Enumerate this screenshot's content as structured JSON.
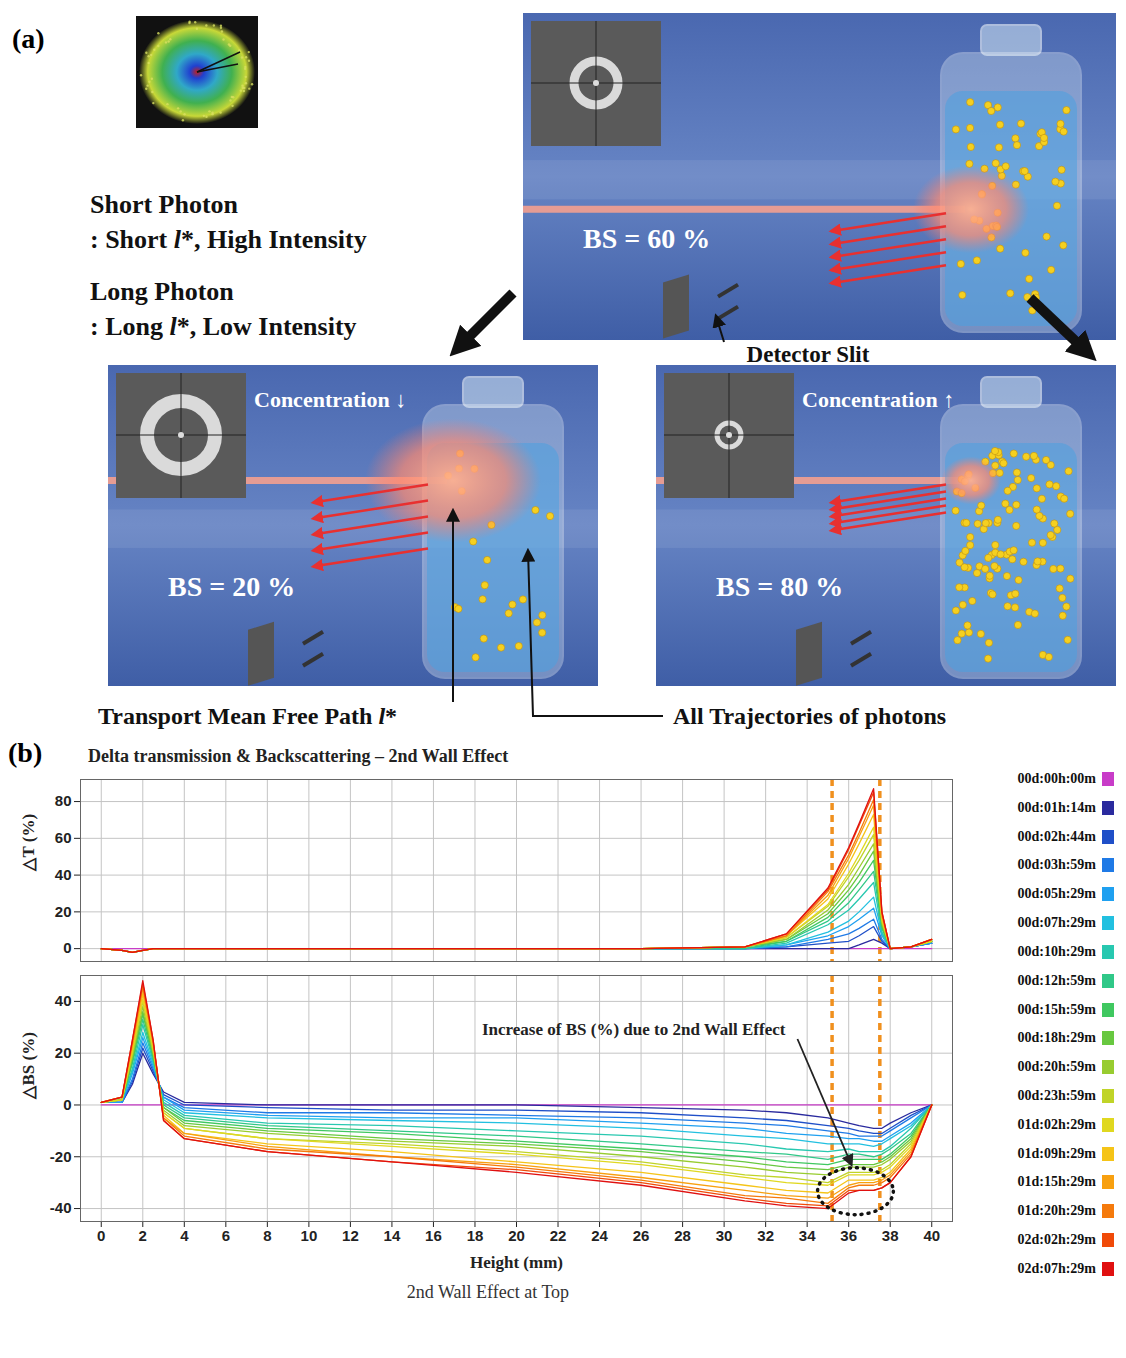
{
  "diagram": {
    "letter": "(a)",
    "photon_legend": [
      {
        "name": "Short Photon",
        "desc": ": Short l*, High Intensity"
      },
      {
        "name": "Long Photon",
        "desc": ": Long l*, Low Intensity"
      }
    ],
    "scenes": [
      {
        "label": "BS = 60 %"
      },
      {
        "label": "BS = 20 %",
        "concentration": "Concentration ↓"
      },
      {
        "label": "BS = 80 %",
        "concentration": "Concentration ↑"
      }
    ],
    "detector_label": "Detector Slit",
    "path_label": "Transport Mean Free Path l*",
    "trajectory_label": "All Trajectories of photons"
  },
  "chart_letter": "(b)",
  "caption": "2nd Wall Effect at Top",
  "chart_data": [
    {
      "type": "line",
      "title": "Delta transmission & Backscattering – 2nd Wall Effect",
      "x": [
        0,
        1,
        1.5,
        2,
        2.5,
        3,
        4,
        8,
        14,
        20,
        26,
        31,
        33,
        35,
        36,
        36.5,
        37.2,
        37.6,
        38,
        39,
        40
      ],
      "xlim": [
        -1,
        41
      ],
      "xticks": [
        0,
        2,
        4,
        6,
        8,
        10,
        12,
        14,
        16,
        18,
        20,
        22,
        24,
        26,
        28,
        30,
        32,
        34,
        36,
        38,
        40
      ],
      "ylabel": "△T (%)",
      "ylim": [
        -7,
        92
      ],
      "yticks": [
        0,
        20,
        40,
        60,
        80
      ],
      "grid": true,
      "legend": "right",
      "tick_labels": "y",
      "series": [
        {
          "name": "00d:00h:00m",
          "color": "#c83cc8",
          "values": [
            0,
            0,
            0,
            0,
            0,
            0,
            0,
            0,
            0,
            0,
            0,
            0,
            0,
            0,
            0,
            0,
            0,
            0,
            0,
            0,
            0
          ]
        },
        {
          "name": "00d:01h:14m",
          "color": "#2a2a9e",
          "values": [
            0,
            -1,
            -2,
            -1,
            0,
            0,
            0,
            0,
            0,
            0,
            0,
            0,
            0,
            0,
            0,
            2,
            5,
            3,
            0,
            1,
            3
          ]
        },
        {
          "name": "00d:02h:44m",
          "color": "#1f4fc8",
          "values": [
            0,
            -1,
            -2,
            -1,
            0,
            0,
            0,
            0,
            0,
            0,
            0,
            0,
            1,
            3,
            4,
            7,
            12,
            4,
            0,
            1,
            3
          ]
        },
        {
          "name": "00d:03h:59m",
          "color": "#1f7ae6",
          "values": [
            0,
            -1,
            -2,
            -1,
            0,
            0,
            0,
            0,
            0,
            0,
            0,
            0,
            1,
            5,
            8,
            11,
            16,
            5,
            0,
            1,
            3
          ]
        },
        {
          "name": "00d:05h:29m",
          "color": "#1fa0f0",
          "values": [
            0,
            -1,
            -2,
            -1,
            0,
            0,
            0,
            0,
            0,
            0,
            0,
            0,
            2,
            7,
            12,
            16,
            22,
            7,
            0,
            1,
            3
          ]
        },
        {
          "name": "00d:07h:29m",
          "color": "#22c0e0",
          "values": [
            0,
            -1,
            -2,
            -1,
            0,
            0,
            0,
            0,
            0,
            0,
            0,
            0,
            2,
            9,
            15,
            20,
            28,
            8,
            0,
            1,
            4
          ]
        },
        {
          "name": "00d:10h:29m",
          "color": "#28c8b0",
          "values": [
            0,
            -1,
            -2,
            -1,
            0,
            0,
            0,
            0,
            0,
            0,
            0,
            0,
            3,
            13,
            21,
            27,
            36,
            9,
            0,
            1,
            4
          ]
        },
        {
          "name": "00d:12h:59m",
          "color": "#30c888",
          "values": [
            0,
            -1,
            -2,
            -1,
            0,
            0,
            0,
            0,
            0,
            0,
            0,
            0,
            4,
            15,
            25,
            32,
            42,
            11,
            0,
            1,
            4
          ]
        },
        {
          "name": "00d:15h:59m",
          "color": "#40c860",
          "values": [
            0,
            -1,
            -2,
            -1,
            0,
            0,
            0,
            0,
            0,
            0,
            0,
            1,
            4,
            17,
            29,
            36,
            48,
            12,
            0,
            1,
            4
          ]
        },
        {
          "name": "00d:18h:29m",
          "color": "#68c840",
          "values": [
            0,
            -1,
            -2,
            -1,
            0,
            0,
            0,
            0,
            0,
            0,
            0,
            1,
            5,
            19,
            32,
            40,
            53,
            13,
            0,
            1,
            4
          ]
        },
        {
          "name": "00d:20h:59m",
          "color": "#98cc30",
          "values": [
            0,
            -1,
            -2,
            -1,
            0,
            0,
            0,
            0,
            0,
            0,
            0,
            1,
            5,
            21,
            35,
            44,
            57,
            14,
            0,
            1,
            4
          ]
        },
        {
          "name": "00d:23h:59m",
          "color": "#c0d428",
          "values": [
            0,
            -1,
            -2,
            -1,
            0,
            0,
            0,
            0,
            0,
            0,
            0,
            1,
            6,
            23,
            39,
            48,
            62,
            15,
            0,
            1,
            4
          ]
        },
        {
          "name": "01d:02h:29m",
          "color": "#e0d820",
          "values": [
            0,
            -1,
            -2,
            -1,
            0,
            0,
            0,
            0,
            0,
            0,
            0,
            1,
            6,
            24,
            41,
            51,
            66,
            16,
            0,
            1,
            4
          ]
        },
        {
          "name": "01d:09h:29m",
          "color": "#f5c418",
          "values": [
            0,
            -1,
            -2,
            -1,
            0,
            0,
            0,
            0,
            0,
            0,
            0,
            1,
            7,
            27,
            46,
            57,
            73,
            17,
            0,
            1,
            5
          ]
        },
        {
          "name": "01d:15h:29m",
          "color": "#f8a010",
          "values": [
            0,
            -1,
            -2,
            -1,
            0,
            0,
            0,
            0,
            0,
            0,
            0,
            1,
            7,
            29,
            49,
            61,
            78,
            18,
            0,
            1,
            5
          ]
        },
        {
          "name": "01d:20h:29m",
          "color": "#f57a0c",
          "values": [
            0,
            -1,
            -2,
            -1,
            0,
            0,
            0,
            0,
            0,
            0,
            0,
            1,
            7,
            31,
            51,
            63,
            81,
            19,
            0,
            1,
            5
          ]
        },
        {
          "name": "02d:02h:29m",
          "color": "#f04a08",
          "values": [
            0,
            -1,
            -2,
            -1,
            0,
            0,
            0,
            0,
            0,
            0,
            0,
            1,
            8,
            32,
            54,
            67,
            85,
            20,
            0,
            1,
            5
          ]
        },
        {
          "name": "02d:07h:29m",
          "color": "#e01010",
          "values": [
            0,
            -1,
            -2,
            -1,
            0,
            0,
            0,
            0,
            0,
            0,
            0,
            1,
            8,
            33,
            55,
            68,
            87,
            20,
            0,
            1,
            5
          ]
        }
      ]
    },
    {
      "type": "line",
      "x": [
        0,
        1,
        1.5,
        2,
        2.5,
        3,
        4,
        8,
        14,
        20,
        26,
        31,
        33,
        35,
        36,
        36.5,
        37.2,
        37.6,
        38,
        39,
        40
      ],
      "xlabel": "Height (mm)",
      "xlim": [
        -1,
        41
      ],
      "xticks": [
        0,
        2,
        4,
        6,
        8,
        10,
        12,
        14,
        16,
        18,
        20,
        22,
        24,
        26,
        28,
        30,
        32,
        34,
        36,
        38,
        40
      ],
      "ylabel": "△BS (%)",
      "ylim": [
        -45,
        50
      ],
      "yticks": [
        -40,
        -20,
        0,
        20,
        40
      ],
      "grid": true,
      "annotation": {
        "text": "Increase of BS (%) due to 2nd Wall Effect",
        "x_range": [
          35.2,
          37.5
        ],
        "y_range": [
          -41,
          -26
        ]
      },
      "series": [
        {
          "name": "00d:00h:00m",
          "color": "#c83cc8",
          "values": [
            0,
            0,
            0,
            0,
            0,
            0,
            0,
            0,
            0,
            0,
            0,
            0,
            0,
            0,
            0,
            0,
            0,
            0,
            0,
            0,
            0
          ]
        },
        {
          "name": "00d:01h:14m",
          "color": "#2a2a9e",
          "values": [
            1,
            1,
            8,
            20,
            12,
            5,
            1,
            0,
            0,
            0,
            -1,
            -2,
            -3,
            -5,
            -7,
            -8,
            -9,
            -9,
            -7,
            -3,
            0
          ]
        },
        {
          "name": "00d:02h:44m",
          "color": "#1f4fc8",
          "values": [
            1,
            1,
            9,
            22,
            13,
            4,
            0,
            -1,
            -2,
            -2,
            -3,
            -5,
            -6,
            -8,
            -9,
            -10,
            -11,
            -11,
            -9,
            -4,
            0
          ]
        },
        {
          "name": "00d:03h:59m",
          "color": "#1f7ae6",
          "values": [
            1,
            1,
            10,
            24,
            14,
            3,
            -1,
            -3,
            -3,
            -4,
            -5,
            -7,
            -8,
            -10,
            -11,
            -12,
            -12,
            -12,
            -10,
            -5,
            0
          ]
        },
        {
          "name": "00d:05h:29m",
          "color": "#1fa0f0",
          "values": [
            1,
            1,
            12,
            26,
            15,
            3,
            -2,
            -4,
            -5,
            -5,
            -7,
            -9,
            -11,
            -12,
            -13,
            -13,
            -14,
            -14,
            -12,
            -7,
            0
          ]
        },
        {
          "name": "00d:07h:29m",
          "color": "#22c0e0",
          "values": [
            1,
            2,
            13,
            28,
            16,
            2,
            -3,
            -5,
            -6,
            -7,
            -9,
            -12,
            -13,
            -15,
            -15,
            -15,
            -16,
            -15,
            -13,
            -8,
            0
          ]
        },
        {
          "name": "00d:10h:29m",
          "color": "#28c8b0",
          "values": [
            1,
            2,
            14,
            31,
            17,
            1,
            -4,
            -7,
            -8,
            -10,
            -12,
            -15,
            -17,
            -18,
            -17,
            -18,
            -18,
            -18,
            -16,
            -9,
            0
          ]
        },
        {
          "name": "00d:12h:59m",
          "color": "#30c888",
          "values": [
            1,
            2,
            16,
            33,
            18,
            0,
            -5,
            -8,
            -10,
            -12,
            -15,
            -18,
            -19,
            -21,
            -19,
            -19,
            -20,
            -19,
            -17,
            -11,
            0
          ]
        },
        {
          "name": "00d:15h:59m",
          "color": "#40c860",
          "values": [
            1,
            2,
            17,
            35,
            19,
            -1,
            -6,
            -9,
            -11,
            -14,
            -17,
            -20,
            -22,
            -23,
            -21,
            -21,
            -21,
            -21,
            -19,
            -12,
            0
          ]
        },
        {
          "name": "00d:18h:29m",
          "color": "#68c840",
          "values": [
            1,
            2,
            18,
            36,
            20,
            -1,
            -7,
            -10,
            -13,
            -15,
            -18,
            -22,
            -24,
            -25,
            -23,
            -23,
            -23,
            -22,
            -20,
            -13,
            0
          ]
        },
        {
          "name": "00d:20h:59m",
          "color": "#98cc30",
          "values": [
            1,
            2,
            19,
            38,
            20,
            -2,
            -8,
            -11,
            -14,
            -16,
            -20,
            -24,
            -26,
            -27,
            -24,
            -24,
            -24,
            -23,
            -21,
            -14,
            0
          ]
        },
        {
          "name": "00d:23h:59m",
          "color": "#c0d428",
          "values": [
            1,
            2,
            20,
            40,
            21,
            -3,
            -9,
            -13,
            -15,
            -18,
            -22,
            -27,
            -28,
            -30,
            -26,
            -26,
            -26,
            -25,
            -23,
            -15,
            0
          ]
        },
        {
          "name": "01d:02h:29m",
          "color": "#e0d820",
          "values": [
            1,
            2,
            21,
            41,
            22,
            -3,
            -9,
            -13,
            -16,
            -19,
            -23,
            -28,
            -30,
            -31,
            -27,
            -27,
            -27,
            -26,
            -24,
            -16,
            0
          ]
        },
        {
          "name": "01d:09h:29m",
          "color": "#f5c418",
          "values": [
            1,
            3,
            22,
            43,
            23,
            -4,
            -11,
            -15,
            -18,
            -22,
            -26,
            -31,
            -33,
            -34,
            -29,
            -29,
            -29,
            -28,
            -26,
            -17,
            0
          ]
        },
        {
          "name": "01d:15h:29m",
          "color": "#f8a010",
          "values": [
            1,
            3,
            23,
            45,
            24,
            -5,
            -11,
            -16,
            -20,
            -23,
            -28,
            -33,
            -35,
            -36,
            -31,
            -30,
            -30,
            -29,
            -27,
            -18,
            0
          ]
        },
        {
          "name": "01d:20h:29m",
          "color": "#f57a0c",
          "values": [
            1,
            3,
            24,
            46,
            24,
            -5,
            -12,
            -17,
            -20,
            -24,
            -29,
            -35,
            -36,
            -38,
            -32,
            -31,
            -31,
            -30,
            -28,
            -19,
            0
          ]
        },
        {
          "name": "02d:02h:29m",
          "color": "#f04a08",
          "values": [
            1,
            3,
            25,
            47,
            25,
            -6,
            -13,
            -18,
            -22,
            -25,
            -30,
            -36,
            -38,
            -39,
            -33,
            -33,
            -33,
            -32,
            -30,
            -20,
            0
          ]
        },
        {
          "name": "02d:07h:29m",
          "color": "#e01010",
          "values": [
            1,
            3,
            25,
            48,
            25,
            -6,
            -13,
            -18,
            -22,
            -26,
            -31,
            -37,
            -39,
            -40,
            -34,
            -33,
            -33,
            -32,
            -30,
            -20,
            0
          ]
        }
      ]
    }
  ]
}
